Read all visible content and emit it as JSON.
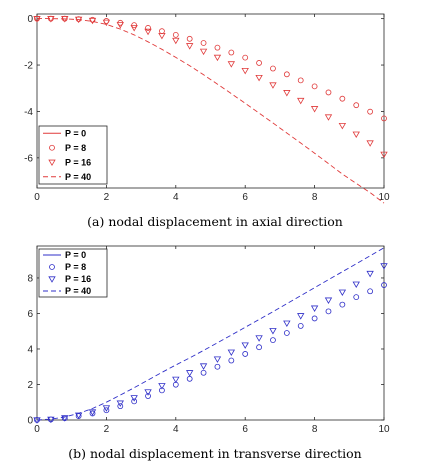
{
  "chart_data": [
    {
      "type": "scatter",
      "caption": "(a)  nodal displacement in axial direction",
      "xlim": [
        0,
        10
      ],
      "ylim": [
        -7.3,
        0.2
      ],
      "xticks": [
        0,
        2,
        4,
        6,
        8,
        10
      ],
      "yticks": [
        0,
        -2,
        -4,
        -6
      ],
      "grid": false,
      "legend_position": "bottom-left",
      "color": "#e03a3a",
      "x": [
        0,
        0.4,
        0.8,
        1.2,
        1.6,
        2.0,
        2.4,
        2.8,
        3.2,
        3.6,
        4.0,
        4.4,
        4.8,
        5.2,
        5.6,
        6.0,
        6.4,
        6.8,
        7.2,
        7.6,
        8.0,
        8.4,
        8.8,
        9.2,
        9.6,
        10.0
      ],
      "series": [
        {
          "name": "P = 0",
          "marker": "none",
          "line": "solid",
          "values": []
        },
        {
          "name": "P = 8",
          "marker": "circle",
          "line": "none",
          "values": [
            0,
            0,
            0,
            -0.02,
            -0.05,
            -0.1,
            -0.18,
            -0.28,
            -0.4,
            -0.54,
            -0.7,
            -0.87,
            -1.05,
            -1.25,
            -1.46,
            -1.68,
            -1.91,
            -2.15,
            -2.4,
            -2.66,
            -2.92,
            -3.18,
            -3.45,
            -3.73,
            -4.01,
            -4.3
          ]
        },
        {
          "name": "P = 16",
          "marker": "triangle-down",
          "line": "none",
          "values": [
            0,
            0,
            0,
            -0.03,
            -0.08,
            -0.16,
            -0.26,
            -0.39,
            -0.55,
            -0.73,
            -0.94,
            -1.17,
            -1.41,
            -1.67,
            -1.95,
            -2.24,
            -2.54,
            -2.86,
            -3.19,
            -3.53,
            -3.88,
            -4.24,
            -4.61,
            -4.98,
            -5.36,
            -5.85
          ]
        },
        {
          "name": "P = 40",
          "marker": "none",
          "line": "dashed",
          "values": [
            0,
            0,
            -0.01,
            -0.04,
            -0.12,
            -0.25,
            -0.45,
            -0.7,
            -1.0,
            -1.32,
            -1.67,
            -2.03,
            -2.42,
            -2.82,
            -3.23,
            -3.65,
            -4.07,
            -4.5,
            -4.93,
            -5.36,
            -5.8,
            -6.25,
            -6.7,
            -7.1,
            -7.5,
            -7.95
          ]
        }
      ]
    },
    {
      "type": "scatter",
      "caption": "(b)  nodal displacement in transverse direction",
      "xlim": [
        0,
        10
      ],
      "ylim": [
        0,
        9.8
      ],
      "xticks": [
        0,
        2,
        4,
        6,
        8,
        10
      ],
      "yticks": [
        0,
        2,
        4,
        6,
        8
      ],
      "grid": false,
      "legend_position": "top-left",
      "color": "#2f2fc8",
      "x": [
        0,
        0.4,
        0.8,
        1.2,
        1.6,
        2.0,
        2.4,
        2.8,
        3.2,
        3.6,
        4.0,
        4.4,
        4.8,
        5.2,
        5.6,
        6.0,
        6.4,
        6.8,
        7.2,
        7.6,
        8.0,
        8.4,
        8.8,
        9.2,
        9.6,
        10.0
      ],
      "series": [
        {
          "name": "P = 0",
          "marker": "none",
          "line": "solid",
          "values": []
        },
        {
          "name": "P = 8",
          "marker": "circle",
          "line": "none",
          "values": [
            0,
            0.03,
            0.1,
            0.22,
            0.37,
            0.55,
            0.78,
            1.05,
            1.35,
            1.67,
            1.99,
            2.32,
            2.66,
            3.0,
            3.35,
            3.72,
            4.1,
            4.5,
            4.9,
            5.3,
            5.72,
            6.12,
            6.5,
            6.92,
            7.25,
            7.6
          ]
        },
        {
          "name": "P = 16",
          "marker": "triangle-down",
          "line": "none",
          "values": [
            0,
            0.04,
            0.12,
            0.27,
            0.45,
            0.68,
            0.95,
            1.25,
            1.58,
            1.93,
            2.29,
            2.66,
            3.04,
            3.43,
            3.82,
            4.22,
            4.62,
            5.03,
            5.45,
            5.87,
            6.3,
            6.75,
            7.2,
            7.65,
            8.25,
            8.68
          ]
        },
        {
          "name": "P = 40",
          "marker": "none",
          "line": "dashed",
          "values": [
            0,
            0.05,
            0.17,
            0.37,
            0.65,
            1.0,
            1.4,
            1.82,
            2.25,
            2.68,
            3.1,
            3.5,
            3.92,
            4.35,
            4.78,
            5.22,
            5.66,
            6.1,
            6.55,
            7.0,
            7.45,
            7.9,
            8.35,
            8.8,
            9.25,
            9.7
          ]
        }
      ]
    }
  ]
}
